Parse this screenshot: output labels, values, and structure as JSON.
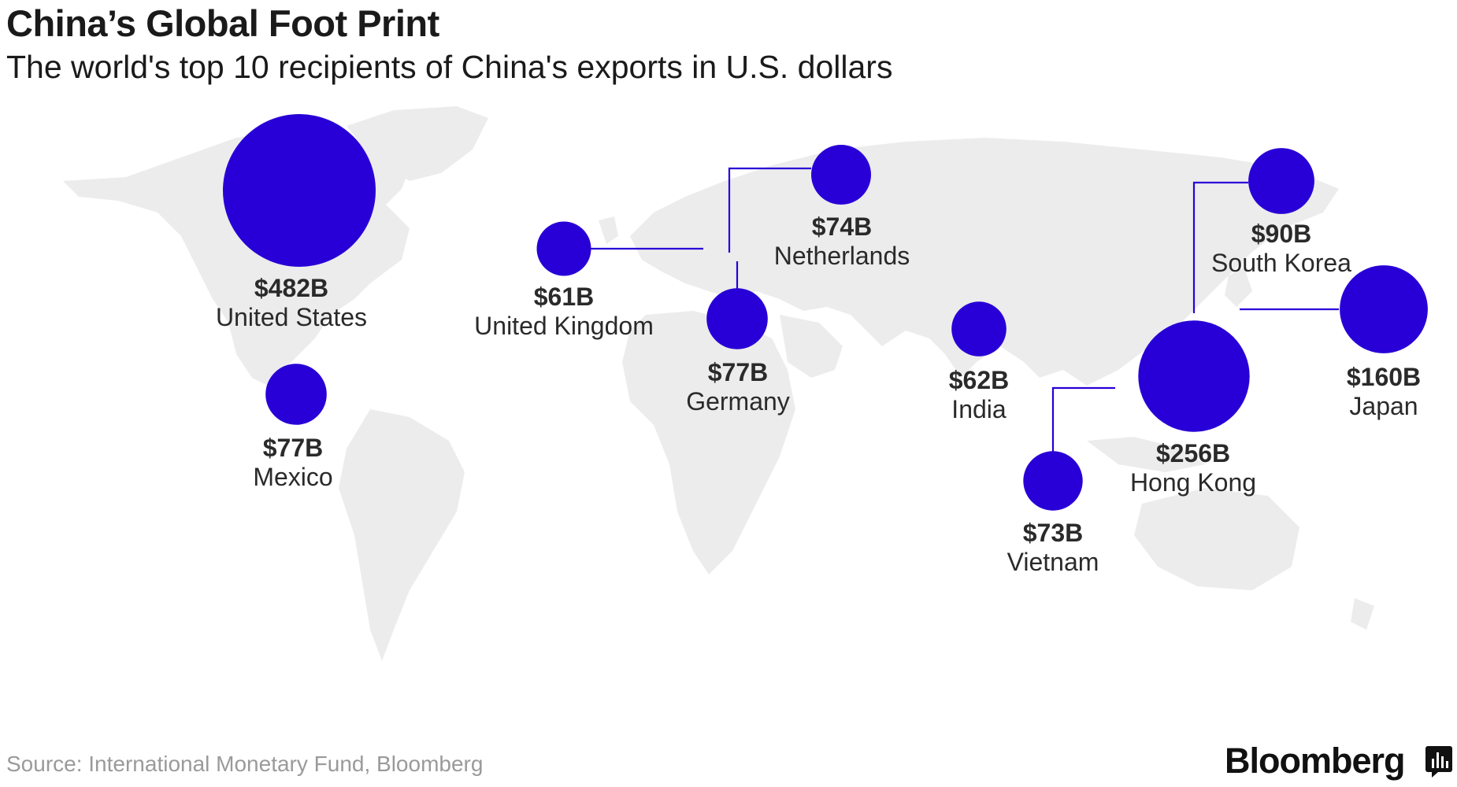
{
  "title": "China’s Global Foot Print",
  "subtitle": "The world's top 10 recipients of China's exports in U.S. dollars",
  "source": "Source: International Monetary Fund, Bloomberg",
  "brand": "Bloomberg",
  "bubble_color": "#2800d7",
  "land_color": "#ececec",
  "icons": [
    "bloomberg-logo-icon"
  ],
  "chart_data": {
    "type": "bubble-map",
    "unit": "billion US dollars",
    "points": [
      {
        "key": "us",
        "country": "United States",
        "value": 482,
        "label": "$482B"
      },
      {
        "key": "hk",
        "country": "Hong Kong",
        "value": 256,
        "label": "$256B"
      },
      {
        "key": "jp",
        "country": "Japan",
        "value": 160,
        "label": "$160B"
      },
      {
        "key": "kr",
        "country": "South Korea",
        "value": 90,
        "label": "$90B"
      },
      {
        "key": "de",
        "country": "Germany",
        "value": 77,
        "label": "$77B"
      },
      {
        "key": "mx",
        "country": "Mexico",
        "value": 77,
        "label": "$77B"
      },
      {
        "key": "nl",
        "country": "Netherlands",
        "value": 74,
        "label": "$74B"
      },
      {
        "key": "vn",
        "country": "Vietnam",
        "value": 73,
        "label": "$73B"
      },
      {
        "key": "in",
        "country": "India",
        "value": 62,
        "label": "$62B"
      },
      {
        "key": "uk",
        "country": "United Kingdom",
        "value": 61,
        "label": "$61B"
      }
    ]
  }
}
